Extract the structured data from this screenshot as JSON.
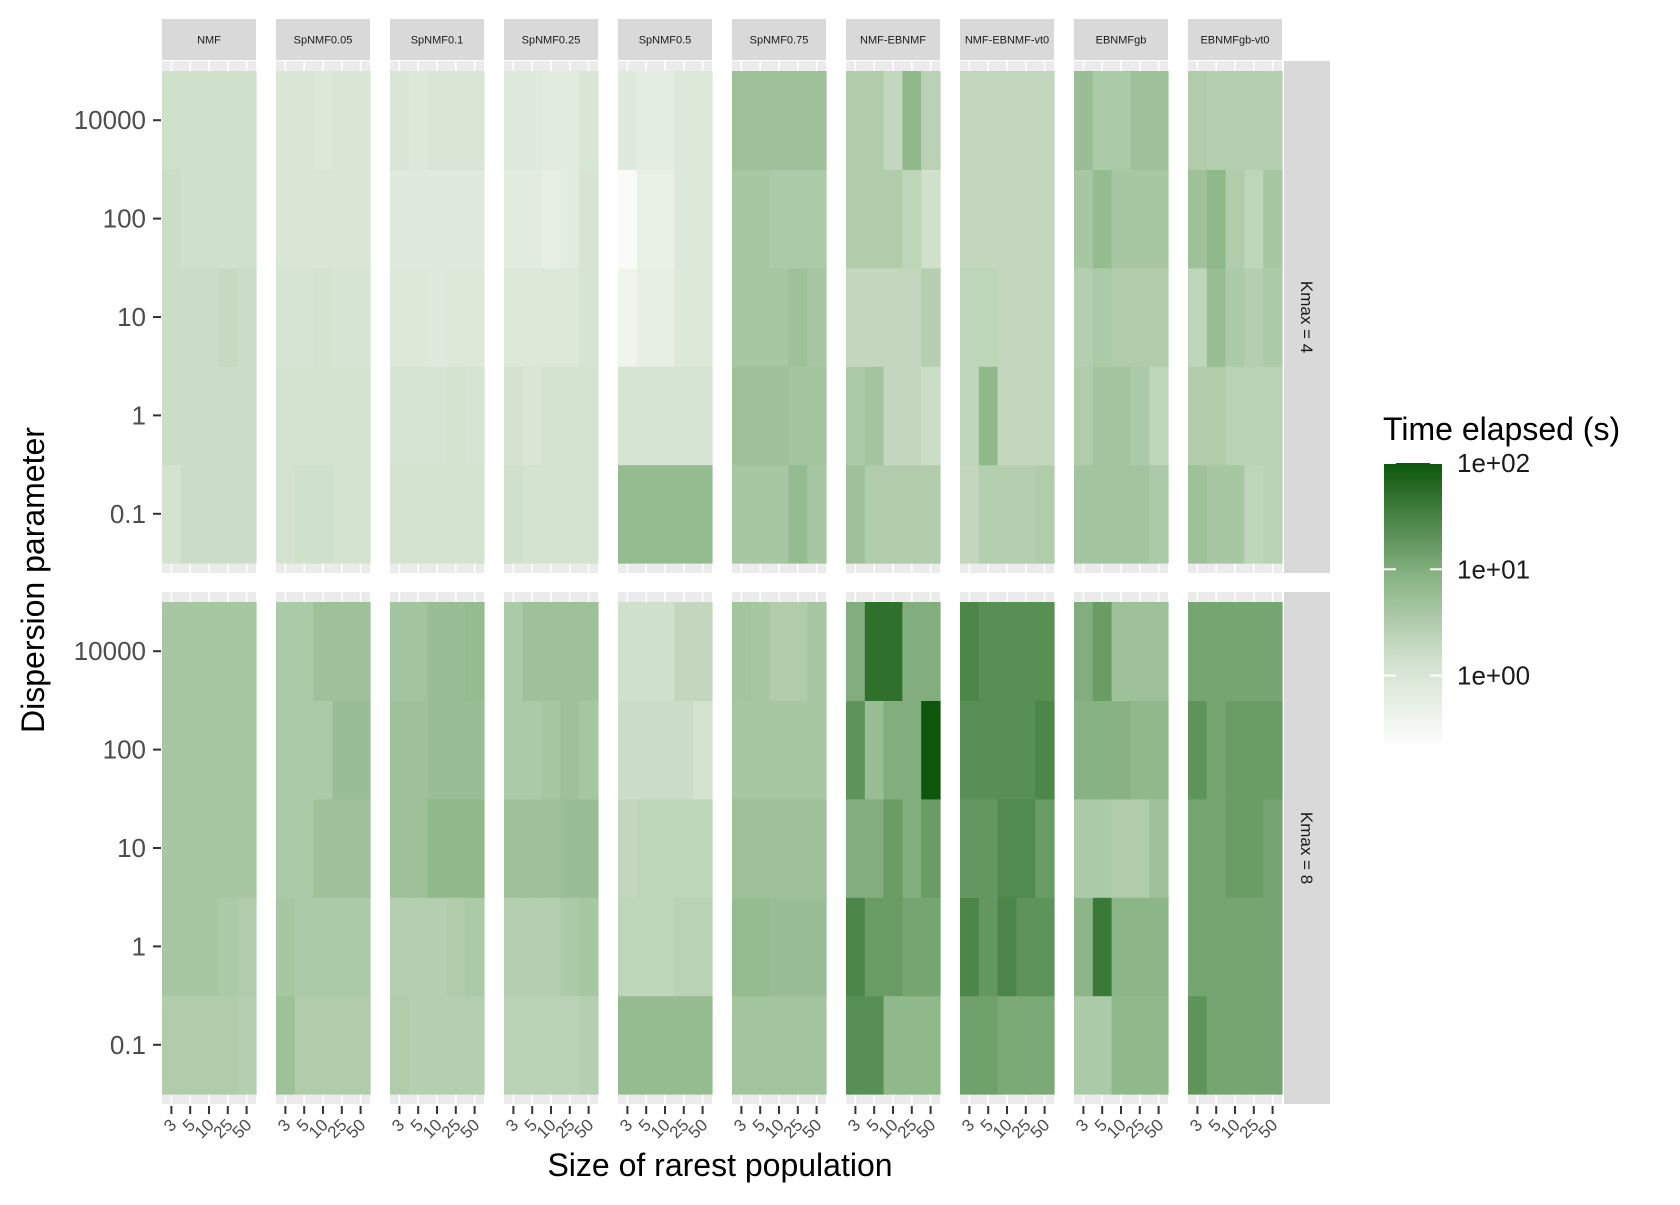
{
  "chart_data": {
    "type": "heatmap",
    "xlabel": "Size of rarest population",
    "ylabel": "Dispersion parameter",
    "x_categories": [
      "3",
      "5",
      "10",
      "25",
      "50"
    ],
    "y_categories": [
      "0.1",
      "1",
      "10",
      "100",
      "10000"
    ],
    "facet_columns": [
      "NMF",
      "SpNMF0.05",
      "SpNMF0.1",
      "SpNMF0.25",
      "SpNMF0.5",
      "SpNMF0.75",
      "NMF-EBNMF",
      "NMF-EBNMF-vt0",
      "EBNMFgb",
      "EBNMFgb-vt0"
    ],
    "facet_rows": [
      "Kmax = 4",
      "Kmax = 8"
    ],
    "color_scale": {
      "log10": true,
      "low_color": "#ffffff",
      "high_color": "#0d560b",
      "min_log10": -0.7,
      "max_log10": 2.0
    },
    "legend": {
      "title": "Time elapsed (s)",
      "position": "right",
      "ticks": [
        {
          "label": "1e+02",
          "log10": 2
        },
        {
          "label": "1e+01",
          "log10": 1
        },
        {
          "label": "1e+00",
          "log10": 0
        }
      ]
    },
    "facets": {
      "Kmax = 4": {
        "NMF": [
          [
            0.1,
            0.2,
            0.2,
            0.2,
            0.2
          ],
          [
            0.2,
            0.2,
            0.2,
            0.2,
            0.2
          ],
          [
            0.2,
            0.2,
            0.2,
            0.25,
            0.2
          ],
          [
            0.2,
            0.15,
            0.15,
            0.15,
            0.15
          ],
          [
            0.15,
            0.15,
            0.15,
            0.15,
            0.15
          ]
        ],
        "SpNMF0.05": [
          [
            0.1,
            0.15,
            0.15,
            0.1,
            0.1
          ],
          [
            0.1,
            0.1,
            0.1,
            0.1,
            0.1
          ],
          [
            0.05,
            0.05,
            0.1,
            0.05,
            0.05
          ],
          [
            0.0,
            0.0,
            0.0,
            0.0,
            0.0
          ],
          [
            0.0,
            0.0,
            -0.05,
            0.0,
            0.0
          ]
        ],
        "SpNMF0.1": [
          [
            0.1,
            0.1,
            0.1,
            0.1,
            0.1
          ],
          [
            0.05,
            0.05,
            0.05,
            0.1,
            0.05
          ],
          [
            -0.05,
            -0.05,
            -0.1,
            -0.05,
            -0.05
          ],
          [
            -0.1,
            -0.1,
            -0.1,
            -0.1,
            -0.1
          ],
          [
            0.0,
            -0.05,
            0.0,
            0.0,
            0.0
          ]
        ],
        "SpNMF0.25": [
          [
            0.15,
            0.1,
            0.1,
            0.1,
            0.1
          ],
          [
            0.1,
            0.0,
            0.1,
            0.1,
            0.1
          ],
          [
            -0.05,
            -0.05,
            -0.05,
            -0.05,
            0.05
          ],
          [
            -0.15,
            -0.15,
            -0.25,
            -0.15,
            0.05
          ],
          [
            -0.1,
            -0.1,
            -0.15,
            -0.15,
            0.0
          ]
        ],
        "SpNMF0.5": [
          [
            0.8,
            0.8,
            0.8,
            0.8,
            0.8
          ],
          [
            0.05,
            0.05,
            0.05,
            0.05,
            0.05
          ],
          [
            -0.4,
            -0.25,
            -0.25,
            -0.05,
            -0.05
          ],
          [
            -0.6,
            -0.3,
            -0.3,
            -0.05,
            -0.05
          ],
          [
            -0.1,
            -0.2,
            -0.2,
            -0.05,
            -0.05
          ]
        ],
        "SpNMF0.75": [
          [
            0.6,
            0.6,
            0.6,
            0.8,
            0.6
          ],
          [
            0.7,
            0.7,
            0.7,
            0.65,
            0.65
          ],
          [
            0.6,
            0.6,
            0.6,
            0.7,
            0.6
          ],
          [
            0.6,
            0.6,
            0.55,
            0.55,
            0.55
          ],
          [
            0.7,
            0.7,
            0.7,
            0.7,
            0.7
          ]
        ],
        "NMF-EBNMF": [
          [
            0.7,
            0.5,
            0.5,
            0.5,
            0.5
          ],
          [
            0.55,
            0.65,
            0.3,
            0.3,
            0.2
          ],
          [
            0.3,
            0.3,
            0.3,
            0.3,
            0.45
          ],
          [
            0.5,
            0.5,
            0.5,
            0.35,
            0.15
          ],
          [
            0.5,
            0.5,
            0.3,
            0.85,
            0.4
          ]
        ],
        "NMF-EBNMF-vt0": [
          [
            0.3,
            0.45,
            0.45,
            0.45,
            0.5
          ],
          [
            0.35,
            0.85,
            0.3,
            0.3,
            0.3
          ],
          [
            0.35,
            0.35,
            0.3,
            0.3,
            0.3
          ],
          [
            0.3,
            0.3,
            0.3,
            0.3,
            0.3
          ],
          [
            0.3,
            0.3,
            0.3,
            0.3,
            0.3
          ]
        ],
        "EBNMFgb": [
          [
            0.65,
            0.65,
            0.65,
            0.65,
            0.55
          ],
          [
            0.5,
            0.65,
            0.65,
            0.55,
            0.35
          ],
          [
            0.45,
            0.55,
            0.5,
            0.5,
            0.5
          ],
          [
            0.6,
            0.8,
            0.6,
            0.6,
            0.6
          ],
          [
            0.75,
            0.55,
            0.55,
            0.7,
            0.7
          ]
        ],
        "EBNMFgb-vt0": [
          [
            0.7,
            0.6,
            0.6,
            0.35,
            0.4
          ],
          [
            0.5,
            0.5,
            0.4,
            0.4,
            0.4
          ],
          [
            0.35,
            0.75,
            0.55,
            0.45,
            0.55
          ],
          [
            0.7,
            0.85,
            0.5,
            0.35,
            0.6
          ],
          [
            0.5,
            0.45,
            0.45,
            0.45,
            0.45
          ]
        ]
      },
      "Kmax = 8": {
        "NMF": [
          [
            0.5,
            0.5,
            0.5,
            0.5,
            0.45
          ],
          [
            0.6,
            0.6,
            0.6,
            0.55,
            0.5
          ],
          [
            0.6,
            0.6,
            0.6,
            0.6,
            0.6
          ],
          [
            0.6,
            0.6,
            0.6,
            0.6,
            0.6
          ],
          [
            0.6,
            0.6,
            0.6,
            0.6,
            0.6
          ]
        ],
        "SpNMF0.05": [
          [
            0.7,
            0.5,
            0.5,
            0.5,
            0.5
          ],
          [
            0.6,
            0.55,
            0.55,
            0.55,
            0.55
          ],
          [
            0.55,
            0.55,
            0.7,
            0.7,
            0.7
          ],
          [
            0.55,
            0.55,
            0.55,
            0.75,
            0.75
          ],
          [
            0.55,
            0.55,
            0.7,
            0.7,
            0.7
          ]
        ],
        "SpNMF0.1": [
          [
            0.5,
            0.45,
            0.45,
            0.45,
            0.45
          ],
          [
            0.45,
            0.45,
            0.45,
            0.5,
            0.55
          ],
          [
            0.7,
            0.7,
            0.85,
            0.85,
            0.85
          ],
          [
            0.7,
            0.7,
            0.75,
            0.75,
            0.75
          ],
          [
            0.65,
            0.65,
            0.75,
            0.75,
            0.8
          ]
        ],
        "SpNMF0.25": [
          [
            0.4,
            0.4,
            0.4,
            0.4,
            0.45
          ],
          [
            0.45,
            0.45,
            0.45,
            0.55,
            0.6
          ],
          [
            0.7,
            0.7,
            0.7,
            0.75,
            0.75
          ],
          [
            0.55,
            0.55,
            0.6,
            0.7,
            0.6
          ],
          [
            0.55,
            0.7,
            0.7,
            0.7,
            0.7
          ]
        ],
        "SpNMF0.5": [
          [
            0.8,
            0.8,
            0.8,
            0.8,
            0.8
          ],
          [
            0.35,
            0.35,
            0.35,
            0.4,
            0.4
          ],
          [
            0.3,
            0.35,
            0.35,
            0.35,
            0.35
          ],
          [
            0.2,
            0.2,
            0.2,
            0.2,
            0.1
          ],
          [
            0.15,
            0.15,
            0.15,
            0.3,
            0.3
          ]
        ],
        "SpNMF0.75": [
          [
            0.65,
            0.65,
            0.65,
            0.65,
            0.65
          ],
          [
            0.8,
            0.8,
            0.75,
            0.75,
            0.75
          ],
          [
            0.7,
            0.7,
            0.7,
            0.7,
            0.7
          ],
          [
            0.6,
            0.6,
            0.6,
            0.6,
            0.6
          ],
          [
            0.65,
            0.6,
            0.5,
            0.5,
            0.6
          ]
        ],
        "NMF-EBNMF": [
          [
            1.35,
            1.35,
            0.85,
            0.85,
            0.85
          ],
          [
            1.45,
            1.2,
            1.2,
            1.1,
            1.1
          ],
          [
            1.0,
            1.0,
            1.2,
            1.0,
            1.2
          ],
          [
            1.3,
            0.75,
            1.0,
            1.0,
            2.0
          ],
          [
            1.0,
            1.7,
            1.7,
            1.0,
            1.0
          ]
        ],
        "NMF-EBNMF-vt0": [
          [
            1.15,
            1.15,
            1.05,
            1.05,
            1.05
          ],
          [
            1.45,
            1.25,
            1.45,
            1.3,
            1.3
          ],
          [
            1.25,
            1.25,
            1.4,
            1.4,
            1.2
          ],
          [
            1.35,
            1.35,
            1.35,
            1.35,
            1.45
          ],
          [
            1.45,
            1.35,
            1.35,
            1.35,
            1.35
          ]
        ],
        "EBNMFgb": [
          [
            0.55,
            0.55,
            0.85,
            0.85,
            0.85
          ],
          [
            0.9,
            1.6,
            0.9,
            0.9,
            0.9
          ],
          [
            0.55,
            0.55,
            0.5,
            0.5,
            0.7
          ],
          [
            0.95,
            0.95,
            0.95,
            0.85,
            0.85
          ],
          [
            1.0,
            1.2,
            0.7,
            0.7,
            0.7
          ]
        ],
        "EBNMFgb-vt0": [
          [
            1.3,
            1.1,
            1.1,
            1.1,
            1.1
          ],
          [
            1.1,
            1.1,
            1.1,
            1.1,
            1.1
          ],
          [
            1.1,
            1.1,
            1.2,
            1.2,
            1.1
          ],
          [
            1.3,
            1.1,
            1.2,
            1.2,
            1.2
          ],
          [
            1.1,
            1.1,
            1.1,
            1.1,
            1.1
          ]
        ]
      }
    }
  }
}
